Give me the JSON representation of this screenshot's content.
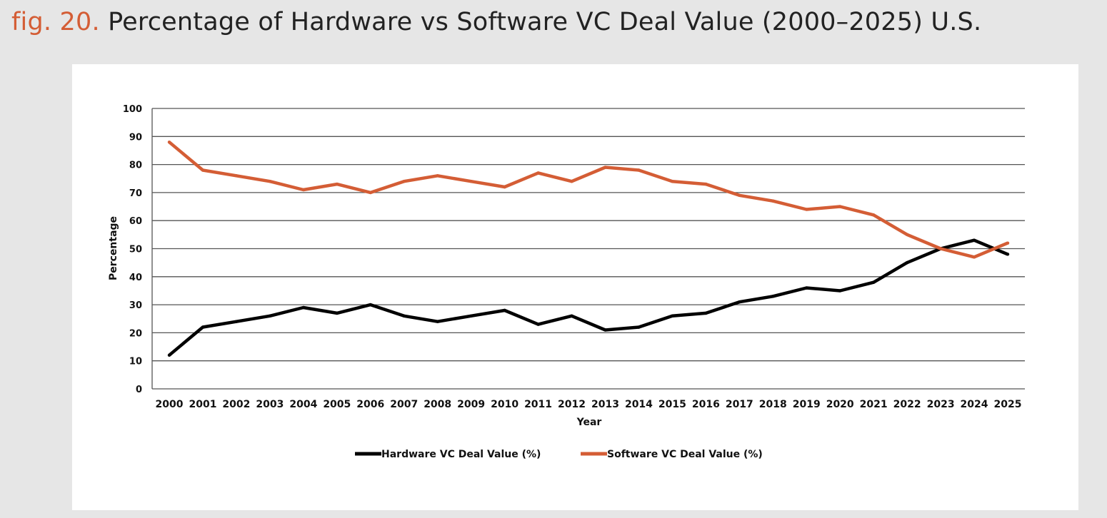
{
  "figure": {
    "label": "fig. 20.",
    "title": "Percentage of Hardware vs Software VC Deal Value (2000–2025) U.S."
  },
  "colors": {
    "background": "#e6e6e6",
    "panel": "#ffffff",
    "label_accent": "#d45d35",
    "hardware": "#000000",
    "software": "#d45d35",
    "grid": "#555555"
  },
  "chart_data": {
    "type": "line",
    "xlabel": "Year",
    "ylabel": "Percentage",
    "ylim": [
      0,
      100
    ],
    "yticks": [
      0,
      10,
      20,
      30,
      40,
      50,
      60,
      70,
      80,
      90,
      100
    ],
    "grid": "horizontal",
    "legend_position": "bottom-center",
    "categories": [
      "2000",
      "2001",
      "2002",
      "2003",
      "2004",
      "2005",
      "2006",
      "2007",
      "2008",
      "2009",
      "2010",
      "2011",
      "2012",
      "2013",
      "2014",
      "2015",
      "2016",
      "2017",
      "2018",
      "2019",
      "2020",
      "2021",
      "2022",
      "2023",
      "2024",
      "2025"
    ],
    "series": [
      {
        "name": "Hardware VC Deal Value (%)",
        "color": "#000000",
        "values": [
          12,
          22,
          24,
          26,
          29,
          27,
          30,
          26,
          24,
          26,
          28,
          23,
          26,
          21,
          22,
          26,
          27,
          31,
          33,
          36,
          35,
          38,
          45,
          50,
          53,
          48
        ]
      },
      {
        "name": "Software VC Deal Value (%)",
        "color": "#d45d35",
        "values": [
          88,
          78,
          76,
          74,
          71,
          73,
          70,
          74,
          76,
          74,
          72,
          77,
          74,
          79,
          78,
          74,
          73,
          69,
          67,
          64,
          65,
          62,
          55,
          50,
          47,
          52
        ]
      }
    ]
  }
}
